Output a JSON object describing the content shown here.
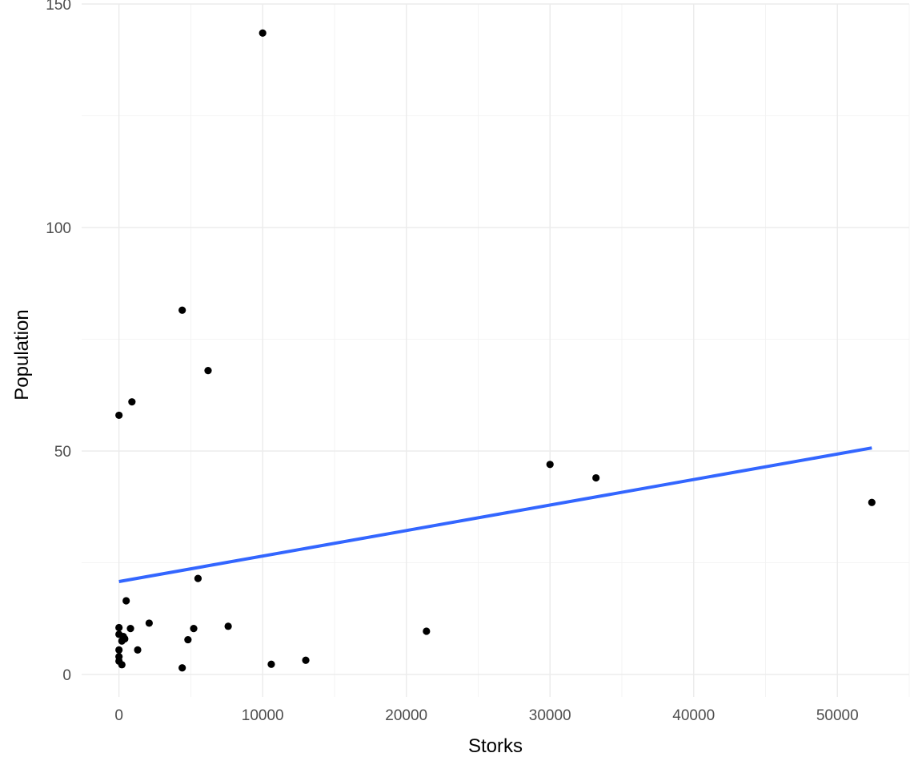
{
  "chart_data": {
    "type": "scatter",
    "xlabel": "Storks",
    "ylabel": "Population",
    "xlim": [
      -2600,
      55000
    ],
    "ylim": [
      -5,
      150
    ],
    "x_ticks": [
      0,
      10000,
      20000,
      30000,
      40000,
      50000
    ],
    "x_tick_labels": [
      "0",
      "10000",
      "20000",
      "30000",
      "40000",
      "50000"
    ],
    "y_ticks": [
      0,
      50,
      100,
      150
    ],
    "y_tick_labels": [
      "0",
      "50",
      "100",
      "150"
    ],
    "grid": true,
    "legend": "none",
    "series": [
      {
        "points": [
          [
            10000,
            143.5
          ],
          [
            4400,
            81.5
          ],
          [
            6200,
            68
          ],
          [
            900,
            61
          ],
          [
            0,
            58
          ],
          [
            30000,
            47
          ],
          [
            33200,
            44
          ],
          [
            52400,
            38.5
          ],
          [
            5500,
            21.5
          ],
          [
            500,
            16.5
          ],
          [
            2100,
            11.5
          ],
          [
            7600,
            10.8
          ],
          [
            5200,
            10.3
          ],
          [
            800,
            10.3
          ],
          [
            0,
            10.5
          ],
          [
            21400,
            9.7
          ],
          [
            0,
            9
          ],
          [
            300,
            8.5
          ],
          [
            400,
            8
          ],
          [
            200,
            7.5
          ],
          [
            4800,
            7.8
          ],
          [
            1300,
            5.5
          ],
          [
            0,
            5.5
          ],
          [
            0,
            4
          ],
          [
            0,
            3
          ],
          [
            13000,
            3.2
          ],
          [
            10600,
            2.3
          ],
          [
            200,
            2.2
          ],
          [
            4400,
            1.5
          ]
        ],
        "color": "#000000"
      }
    ],
    "trend_line": {
      "type": "linear fit",
      "x": [
        0,
        52400
      ],
      "y": [
        20.8,
        50.7
      ],
      "color": "#3366ff"
    }
  }
}
